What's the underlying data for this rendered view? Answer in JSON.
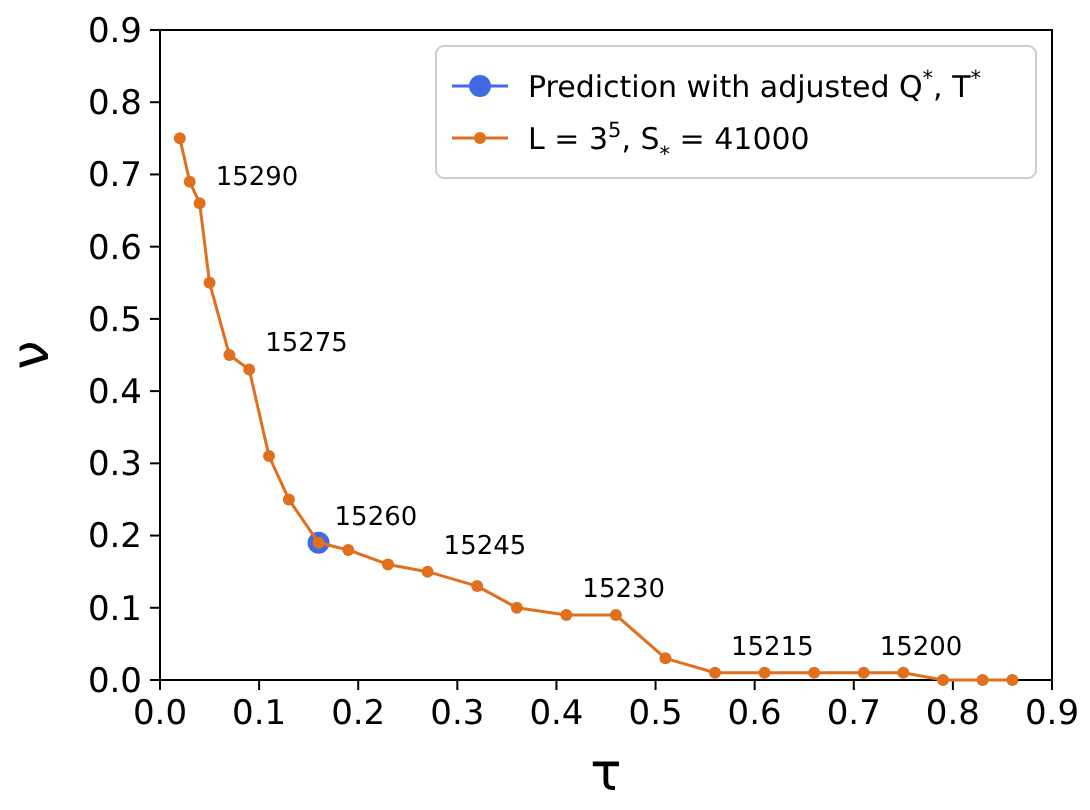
{
  "chart_data": {
    "type": "line",
    "xlabel": "τ",
    "ylabel": "ν",
    "xlim": [
      0,
      0.9
    ],
    "ylim": [
      0,
      0.9
    ],
    "xticks": [
      {
        "value": 0,
        "label": "0.0"
      },
      0.1,
      0.2,
      0.3,
      0.4,
      0.5,
      0.6,
      0.7,
      0.8,
      0.9
    ],
    "yticks": [
      {
        "value": 0,
        "label": "0.0"
      },
      0.1,
      0.2,
      0.3,
      0.4,
      0.5,
      0.6,
      0.7,
      0.8,
      0.9
    ],
    "legend": "top right",
    "grid": false,
    "series": [
      {
        "name": "Prediction with adjusted Q$^{*}$, T$^{*}$",
        "color": "#4169e1",
        "type": "scatter",
        "marker": "circle",
        "x": [
          0.16
        ],
        "values": [
          0.19
        ]
      },
      {
        "name": "L = 3$^{5}$, S$_{*}$ = 41000",
        "color": "#e0701e",
        "marker": "circle",
        "x": [
          0.02,
          0.03,
          0.04,
          0.05,
          0.07,
          0.09,
          0.11,
          0.13,
          0.16,
          0.19,
          0.23,
          0.27,
          0.32,
          0.36,
          0.41,
          0.46,
          0.51,
          0.56,
          0.61,
          0.66,
          0.71,
          0.75,
          0.79,
          0.83,
          0.86
        ],
        "values": [
          0.75,
          0.69,
          0.66,
          0.55,
          0.45,
          0.43,
          0.31,
          0.25,
          0.19,
          0.18,
          0.16,
          0.15,
          0.13,
          0.1,
          0.09,
          0.09,
          0.03,
          0.01,
          0.01,
          0.01,
          0.01,
          0.01,
          0.0,
          0.0,
          0.0
        ]
      }
    ],
    "annotations": [
      {
        "text": "15290",
        "x": 0.04,
        "y": 0.66
      },
      {
        "text": "15275",
        "x": 0.09,
        "y": 0.43
      },
      {
        "text": "15260",
        "x": 0.16,
        "y": 0.19
      },
      {
        "text": "15245",
        "x": 0.27,
        "y": 0.15
      },
      {
        "text": "15230",
        "x": 0.41,
        "y": 0.09
      },
      {
        "text": "15215",
        "x": 0.56,
        "y": 0.01
      },
      {
        "text": "15200",
        "x": 0.71,
        "y": 0.01
      }
    ]
  }
}
